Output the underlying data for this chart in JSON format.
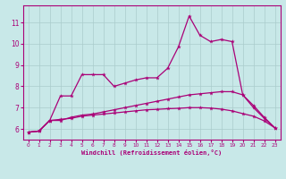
{
  "bg_color": "#c8e8e8",
  "line_color": "#aa0077",
  "grid_color": "#aacccc",
  "xlabel": "Windchill (Refroidissement éolien,°C)",
  "xlim": [
    -0.5,
    23.5
  ],
  "ylim": [
    5.5,
    11.8
  ],
  "yticks": [
    6,
    7,
    8,
    9,
    10,
    11
  ],
  "xticks": [
    0,
    1,
    2,
    3,
    4,
    5,
    6,
    7,
    8,
    9,
    10,
    11,
    12,
    13,
    14,
    15,
    16,
    17,
    18,
    19,
    20,
    21,
    22,
    23
  ],
  "line1_x": [
    0,
    1,
    2,
    3,
    4,
    5,
    6,
    7,
    8,
    9,
    10,
    11,
    12,
    13,
    14,
    15,
    16,
    17,
    18,
    19,
    20,
    21,
    22,
    23
  ],
  "line1_y": [
    5.85,
    5.9,
    6.4,
    7.55,
    7.55,
    8.55,
    8.55,
    8.55,
    8.0,
    8.15,
    8.3,
    8.4,
    8.4,
    8.85,
    9.85,
    11.3,
    10.4,
    10.1,
    10.2,
    10.1,
    7.6,
    7.0,
    6.5,
    6.05
  ],
  "line2_x": [
    0,
    1,
    2,
    3,
    4,
    5,
    6,
    7,
    8,
    9,
    10,
    11,
    12,
    13,
    14,
    15,
    16,
    17,
    18,
    19,
    20,
    21,
    22,
    23
  ],
  "line2_y": [
    5.85,
    5.9,
    6.4,
    6.4,
    6.55,
    6.65,
    6.7,
    6.8,
    6.9,
    7.0,
    7.1,
    7.2,
    7.3,
    7.4,
    7.5,
    7.6,
    7.65,
    7.7,
    7.75,
    7.75,
    7.6,
    7.1,
    6.55,
    6.05
  ],
  "line3_x": [
    0,
    1,
    2,
    3,
    4,
    5,
    6,
    7,
    8,
    9,
    10,
    11,
    12,
    13,
    14,
    15,
    16,
    17,
    18,
    19,
    20,
    21,
    22,
    23
  ],
  "line3_y": [
    5.85,
    5.9,
    6.4,
    6.45,
    6.5,
    6.6,
    6.65,
    6.7,
    6.75,
    6.8,
    6.85,
    6.9,
    6.92,
    6.95,
    6.97,
    7.0,
    7.0,
    6.98,
    6.93,
    6.85,
    6.72,
    6.6,
    6.38,
    6.05
  ]
}
